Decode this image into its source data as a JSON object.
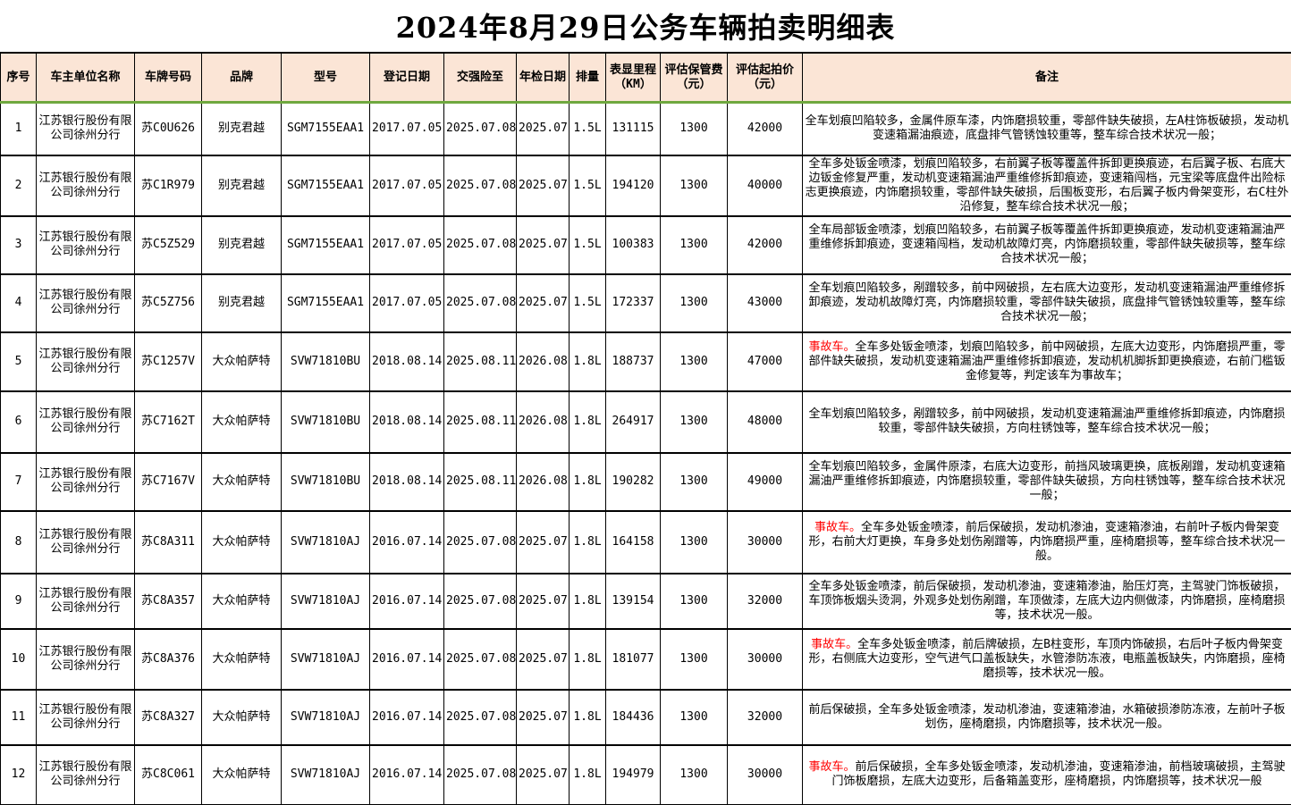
{
  "title": "2024年8月29日公务车辆拍卖明细表",
  "colors": {
    "header_bg": "#FBE5D6",
    "header_underline_green": "#6FA83F",
    "accident_red": "#FF0000",
    "border": "#000000"
  },
  "table": {
    "columns": [
      "序号",
      "车主单位名称",
      "车牌号码",
      "品牌",
      "型号",
      "登记日期",
      "交强险至",
      "年检日期",
      "排量",
      "表显里程（KM）",
      "评估保管费（元）",
      "评估起拍价（元）",
      "备注"
    ],
    "rows": [
      {
        "no": "1",
        "owner": "江苏银行股份有限公司徐州分行",
        "plate": "苏C0U626",
        "brand": "别克君越",
        "model": "SGM7155EAA1",
        "reg_date": "2017.07.05",
        "insurance_to": "2025.07.08",
        "inspection": "2025.07",
        "displacement": "1.5L",
        "mileage": "131115",
        "storage_fee": "1300",
        "start_price": "42000",
        "remark": "全车划痕凹陷较多，金属件原车漆，内饰磨损较重，零部件缺失破损，左A柱饰板破损，发动机变速箱漏油痕迹，底盘排气管锈蚀较重等，整车综合技术状况一般；"
      },
      {
        "no": "2",
        "owner": "江苏银行股份有限公司徐州分行",
        "plate": "苏C1R979",
        "brand": "别克君越",
        "model": "SGM7155EAA1",
        "reg_date": "2017.07.05",
        "insurance_to": "2025.07.08",
        "inspection": "2025.07",
        "displacement": "1.5L",
        "mileage": "194120",
        "storage_fee": "1300",
        "start_price": "40000",
        "remark": "全车多处钣金喷漆，划痕凹陷较多，右前翼子板等覆盖件拆卸更换痕迹，右后翼子板、右底大边钣金修复严重，发动机变速箱漏油严重维修拆卸痕迹，变速箱闯档，元宝梁等底盘件出险标志更换痕迹，内饰磨损较重，零部件缺失破损，后围板变形，右后翼子板内骨架变形，右C柱外沿修复，整车综合技术状况一般；"
      },
      {
        "no": "3",
        "owner": "江苏银行股份有限公司徐州分行",
        "plate": "苏C5Z529",
        "brand": "别克君越",
        "model": "SGM7155EAA1",
        "reg_date": "2017.07.05",
        "insurance_to": "2025.07.08",
        "inspection": "2025.07",
        "displacement": "1.5L",
        "mileage": "100383",
        "storage_fee": "1300",
        "start_price": "42000",
        "remark": "全车局部钣金喷漆，划痕凹陷较多，右前翼子板等覆盖件拆卸更换痕迹，发动机变速箱漏油严重维修拆卸痕迹，变速箱闯档，发动机故障灯亮，内饰磨损较重，零部件缺失破损等，整车综合技术状况一般；"
      },
      {
        "no": "4",
        "owner": "江苏银行股份有限公司徐州分行",
        "plate": "苏C5Z756",
        "brand": "别克君越",
        "model": "SGM7155EAA1",
        "reg_date": "2017.07.05",
        "insurance_to": "2025.07.08",
        "inspection": "2025.07",
        "displacement": "1.5L",
        "mileage": "172337",
        "storage_fee": "1300",
        "start_price": "43000",
        "remark": "全车划痕凹陷较多，剐蹭较多，前中网破损，左右底大边变形，发动机变速箱漏油严重维修拆卸痕迹，发动机故障灯亮，内饰磨损较重，零部件缺失破损，底盘排气管锈蚀较重等，整车综合技术状况一般；"
      },
      {
        "no": "5",
        "owner": "江苏银行股份有限公司徐州分行",
        "plate": "苏C1257V",
        "brand": "大众帕萨特",
        "model": "SVW71810BU",
        "reg_date": "2018.08.14",
        "insurance_to": "2025.08.11",
        "inspection": "2026.08",
        "displacement": "1.8L",
        "mileage": "188737",
        "storage_fee": "1300",
        "start_price": "47000",
        "accident_label": "事故车。",
        "remark": "全车多处钣金喷漆，划痕凹陷较多，前中网破损，左底大边变形，内饰磨损严重，零部件缺失破损，发动机变速箱漏油严重维修拆卸痕迹，发动机机脚拆卸更换痕迹，右前门槛钣金修复等，判定该车为事故车；"
      },
      {
        "no": "6",
        "owner": "江苏银行股份有限公司徐州分行",
        "plate": "苏C7162T",
        "brand": "大众帕萨特",
        "model": "SVW71810BU",
        "reg_date": "2018.08.14",
        "insurance_to": "2025.08.11",
        "inspection": "2026.08",
        "displacement": "1.8L",
        "mileage": "264917",
        "storage_fee": "1300",
        "start_price": "48000",
        "remark": "全车划痕凹陷较多，剐蹭较多，前中网破损，发动机变速箱漏油严重维修拆卸痕迹，内饰磨损较重，零部件缺失破损，方向柱锈蚀等，整车综合技术状况一般；"
      },
      {
        "no": "7",
        "owner": "江苏银行股份有限公司徐州分行",
        "plate": "苏C7167V",
        "brand": "大众帕萨特",
        "model": "SVW71810BU",
        "reg_date": "2018.08.14",
        "insurance_to": "2025.08.11",
        "inspection": "2026.08",
        "displacement": "1.8L",
        "mileage": "190282",
        "storage_fee": "1300",
        "start_price": "49000",
        "remark": "全车划痕凹陷较多，金属件原漆，右底大边变形，前挡风玻璃更换，底板剐蹭，发动机变速箱漏油严重维修拆卸痕迹，内饰磨损较重，零部件缺失破损，方向柱锈蚀等，整车综合技术状况一般；"
      },
      {
        "no": "8",
        "owner": "江苏银行股份有限公司徐州分行",
        "plate": "苏C8A311",
        "brand": "大众帕萨特",
        "model": "SVW71810AJ",
        "reg_date": "2016.07.14",
        "insurance_to": "2025.07.08",
        "inspection": "2025.07",
        "displacement": "1.8L",
        "mileage": "164158",
        "storage_fee": "1300",
        "start_price": "30000",
        "accident_label": "事故车。",
        "remark": "全车多处钣金喷漆，前后保破损，发动机渗油，变速箱渗油，右前叶子板内骨架变形，右前大灯更换，车身多处划伤剐蹭等，内饰磨损严重，座椅磨损等，整车综合技术状况一般。"
      },
      {
        "no": "9",
        "owner": "江苏银行股份有限公司徐州分行",
        "plate": "苏C8A357",
        "brand": "大众帕萨特",
        "model": "SVW71810AJ",
        "reg_date": "2016.07.14",
        "insurance_to": "2025.07.08",
        "inspection": "2025.07",
        "displacement": "1.8L",
        "mileage": "139154",
        "storage_fee": "1300",
        "start_price": "32000",
        "remark": "全车多处钣金喷漆，前后保破损，发动机渗油，变速箱渗油，胎压灯亮，主驾驶门饰板破损，车顶饰板烟头烫洞，外观多处划伤剐蹭，车顶做漆，左底大边内侧做漆，内饰磨损，座椅磨损等，技术状况一般。"
      },
      {
        "no": "10",
        "owner": "江苏银行股份有限公司徐州分行",
        "plate": "苏C8A376",
        "brand": "大众帕萨特",
        "model": "SVW71810AJ",
        "reg_date": "2016.07.14",
        "insurance_to": "2025.07.08",
        "inspection": "2025.07",
        "displacement": "1.8L",
        "mileage": "181077",
        "storage_fee": "1300",
        "start_price": "30000",
        "accident_label": "事故车。",
        "remark": "全车多处钣金喷漆，前后牌破损，左B柱变形，车顶内饰破损，右后叶子板内骨架变形，右侧底大边变形，空气进气口盖板缺失，水管渗防冻液，电瓶盖板缺失，内饰磨损，座椅磨损等，技术状况一般。"
      },
      {
        "no": "11",
        "owner": "江苏银行股份有限公司徐州分行",
        "plate": "苏C8A327",
        "brand": "大众帕萨特",
        "model": "SVW71810AJ",
        "reg_date": "2016.07.14",
        "insurance_to": "2025.07.08",
        "inspection": "2025.07",
        "displacement": "1.8L",
        "mileage": "184436",
        "storage_fee": "1300",
        "start_price": "32000",
        "remark": "前后保破损，全车多处钣金喷漆，发动机渗油，变速箱渗油，水箱破损渗防冻液，左前叶子板划伤，座椅磨损，内饰磨损等，技术状况一般。"
      },
      {
        "no": "12",
        "owner": "江苏银行股份有限公司徐州分行",
        "plate": "苏C8C061",
        "brand": "大众帕萨特",
        "model": "SVW71810AJ",
        "reg_date": "2016.07.14",
        "insurance_to": "2025.07.08",
        "inspection": "2025.07",
        "displacement": "1.8L",
        "mileage": "194979",
        "storage_fee": "1300",
        "start_price": "30000",
        "accident_label": "事故车。",
        "remark": "前后保破损，全车多处钣金喷漆，发动机渗油，变速箱渗油，前档玻璃破损，主驾驶门饰板磨损，左底大边变形，后备箱盖变形，座椅磨损，内饰磨损等，技术状况一般"
      }
    ]
  }
}
